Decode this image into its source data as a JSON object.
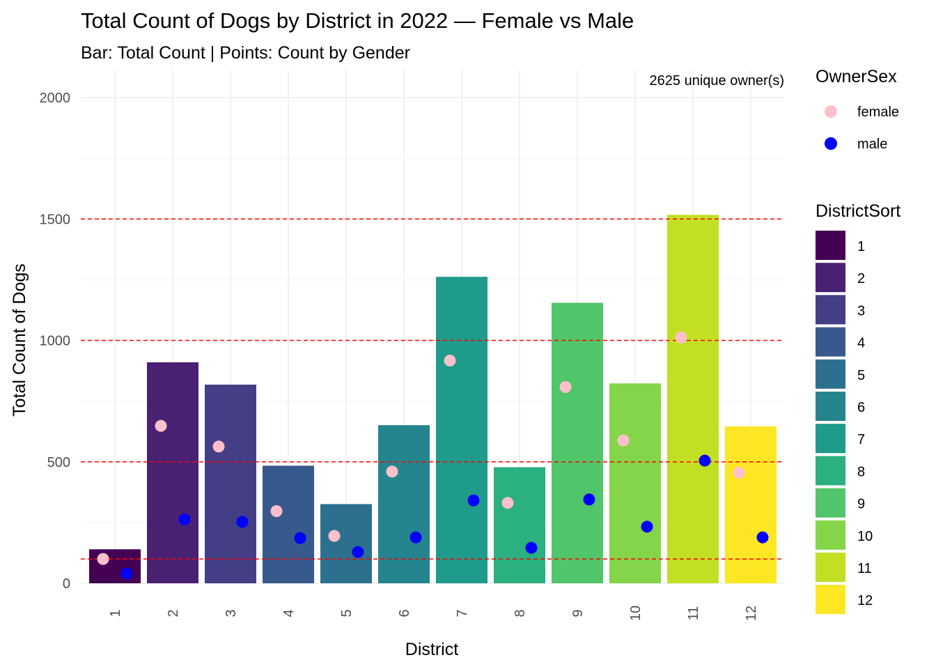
{
  "chart_data": {
    "type": "bar",
    "title": "Total Count of Dogs by District in 2022 — Female vs Male",
    "subtitle": "Bar: Total Count | Points: Count by Gender",
    "xlabel": "District",
    "ylabel": "Total Count of Dogs",
    "ylim": [
      0,
      2000
    ],
    "y_ticks": [
      0,
      500,
      1000,
      1500,
      2000
    ],
    "grid": true,
    "categories": [
      "1",
      "2",
      "3",
      "4",
      "5",
      "6",
      "7",
      "8",
      "9",
      "10",
      "11",
      "12"
    ],
    "values": [
      140,
      910,
      818,
      484,
      326,
      651,
      1262,
      478,
      1155,
      823,
      1517,
      646
    ],
    "bar_colors": [
      "#440154",
      "#482173",
      "#433E85",
      "#38598C",
      "#2D708E",
      "#25858E",
      "#1E9B8A",
      "#2BB07F",
      "#51C56A",
      "#85D54A",
      "#C2DF23",
      "#FDE725"
    ],
    "points": [
      {
        "name": "female",
        "color": "#FFC0CB",
        "values": [
          100,
          648,
          563,
          297,
          195,
          460,
          917,
          331,
          808,
          588,
          1012,
          455
        ]
      },
      {
        "name": "male",
        "color": "#0000FF",
        "values": [
          40,
          263,
          253,
          186,
          129,
          189,
          341,
          146,
          345,
          233,
          505,
          189
        ]
      }
    ],
    "reference_lines": {
      "color": "#FF0000",
      "style": "dashed",
      "values": [
        100,
        500,
        1000,
        1500
      ]
    },
    "annotation": "2625 unique owner(s)",
    "legends": [
      {
        "title": "OwnerSex",
        "position": "right",
        "items": [
          {
            "label": "female",
            "color": "#FFC0CB"
          },
          {
            "label": "male",
            "color": "#0000FF"
          }
        ]
      },
      {
        "title": "DistrictSort",
        "position": "right",
        "items": [
          {
            "label": "1",
            "color": "#440154"
          },
          {
            "label": "2",
            "color": "#482173"
          },
          {
            "label": "3",
            "color": "#433E85"
          },
          {
            "label": "4",
            "color": "#38598C"
          },
          {
            "label": "5",
            "color": "#2D708E"
          },
          {
            "label": "6",
            "color": "#25858E"
          },
          {
            "label": "7",
            "color": "#1E9B8A"
          },
          {
            "label": "8",
            "color": "#2BB07F"
          },
          {
            "label": "9",
            "color": "#51C56A"
          },
          {
            "label": "10",
            "color": "#85D54A"
          },
          {
            "label": "11",
            "color": "#C2DF23"
          },
          {
            "label": "12",
            "color": "#FDE725"
          }
        ]
      }
    ]
  }
}
